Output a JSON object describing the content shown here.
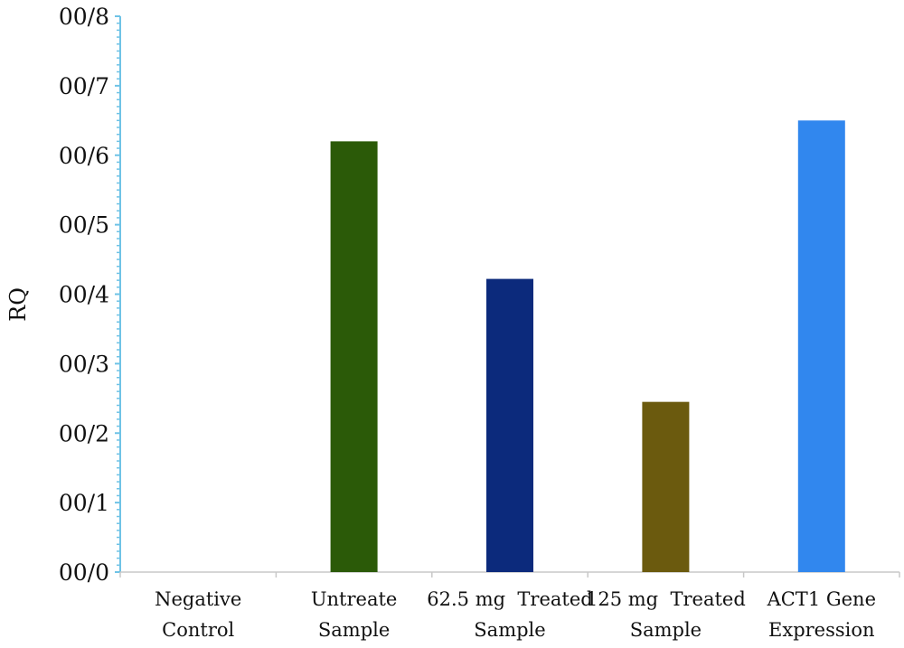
{
  "chart_data": {
    "type": "bar",
    "title": "",
    "xlabel": "",
    "ylabel": "RQ",
    "ylim": [
      0,
      8
    ],
    "y_ticks": [
      "00/0",
      "00/1",
      "00/2",
      "00/3",
      "00/4",
      "00/5",
      "00/6",
      "00/7",
      "00/8"
    ],
    "categories": [
      [
        "Negative",
        "Control"
      ],
      [
        "Untreate",
        "Sample"
      ],
      [
        "62.5 mg  Treated",
        "Sample"
      ],
      [
        "125 mg  Treated",
        "Sample"
      ],
      [
        "ACT1 Gene",
        "Expression"
      ]
    ],
    "values": [
      0,
      6.2,
      4.22,
      2.45,
      6.5
    ],
    "colors": [
      "#ffffff",
      "#2b5a08",
      "#0c2a7c",
      "#6b5a0e",
      "#3187ee"
    ],
    "axis_color": "#6fc3e6",
    "grid": false,
    "legend": "none"
  }
}
